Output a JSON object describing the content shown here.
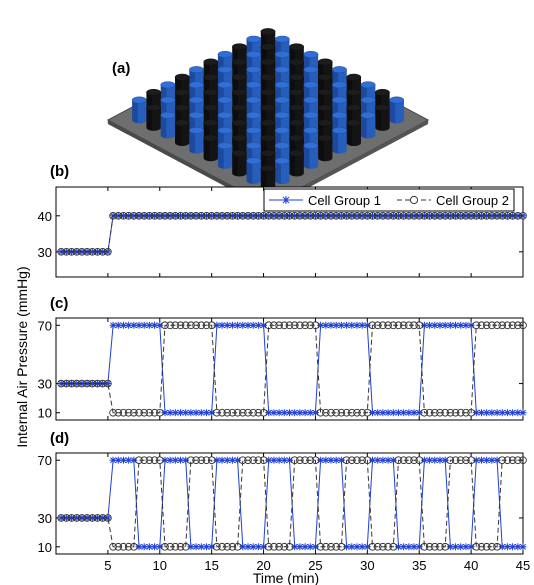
{
  "figure": {
    "panel_labels": [
      "(a)",
      "(b)",
      "(c)",
      "(d)"
    ],
    "ylabel": "Internal Air Pressure (mmHg)",
    "xlabel": "Time (min)"
  },
  "mat": {
    "rows": 10,
    "cols": 10,
    "colors": {
      "blue": "#2f6fd6",
      "black": "#1c1c1c",
      "base": "#6e6e6e"
    }
  },
  "colors": {
    "group1": "#1f3fd6",
    "group2": "#333333"
  },
  "chart_data": [
    {
      "panel": "(b)",
      "type": "line",
      "xlim": [
        0,
        45
      ],
      "ylim": [
        23,
        48
      ],
      "yticks": [
        30,
        40
      ],
      "xticks": [],
      "legend": {
        "placement": "top-right",
        "entries": [
          "Cell Group 1",
          "Cell Group 2"
        ]
      },
      "series": [
        {
          "name": "Cell Group 1",
          "marker": "star",
          "segments": [
            {
              "from": 0.5,
              "to": 5,
              "value": 30
            },
            {
              "from": 5.5,
              "to": 45,
              "value": 40
            }
          ]
        },
        {
          "name": "Cell Group 2",
          "marker": "circle",
          "segments": [
            {
              "from": 0.5,
              "to": 5,
              "value": 30
            },
            {
              "from": 5.5,
              "to": 45,
              "value": 40
            }
          ]
        }
      ]
    },
    {
      "panel": "(c)",
      "type": "line",
      "xlim": [
        0,
        45
      ],
      "ylim": [
        5,
        75
      ],
      "yticks": [
        10,
        30,
        70
      ],
      "xticks": [],
      "series": [
        {
          "name": "Cell Group 1",
          "marker": "star",
          "segments": [
            {
              "from": 0.5,
              "to": 5,
              "value": 30
            },
            {
              "from": 5.5,
              "to": 10,
              "value": 70
            },
            {
              "from": 10.5,
              "to": 15,
              "value": 10
            },
            {
              "from": 15.5,
              "to": 20,
              "value": 70
            },
            {
              "from": 20.5,
              "to": 25,
              "value": 10
            },
            {
              "from": 25.5,
              "to": 30,
              "value": 70
            },
            {
              "from": 30.5,
              "to": 35,
              "value": 10
            },
            {
              "from": 35.5,
              "to": 40,
              "value": 70
            },
            {
              "from": 40.5,
              "to": 45,
              "value": 10
            }
          ]
        },
        {
          "name": "Cell Group 2",
          "marker": "circle",
          "segments": [
            {
              "from": 0.5,
              "to": 5,
              "value": 30
            },
            {
              "from": 5.5,
              "to": 10,
              "value": 10
            },
            {
              "from": 10.5,
              "to": 15,
              "value": 70
            },
            {
              "from": 15.5,
              "to": 20,
              "value": 10
            },
            {
              "from": 20.5,
              "to": 25,
              "value": 70
            },
            {
              "from": 25.5,
              "to": 30,
              "value": 10
            },
            {
              "from": 30.5,
              "to": 35,
              "value": 70
            },
            {
              "from": 35.5,
              "to": 40,
              "value": 10
            },
            {
              "from": 40.5,
              "to": 45,
              "value": 70
            }
          ]
        }
      ]
    },
    {
      "panel": "(d)",
      "type": "line",
      "xlim": [
        0,
        45
      ],
      "ylim": [
        5,
        75
      ],
      "yticks": [
        10,
        30,
        70
      ],
      "xticks": [
        5,
        10,
        15,
        20,
        25,
        30,
        35,
        40,
        45
      ],
      "series": [
        {
          "name": "Cell Group 1",
          "marker": "star",
          "segments": [
            {
              "from": 0.5,
              "to": 5,
              "value": 30
            },
            {
              "from": 5.5,
              "to": 7.5,
              "value": 70
            },
            {
              "from": 8,
              "to": 10,
              "value": 10
            },
            {
              "from": 10.5,
              "to": 12.5,
              "value": 70
            },
            {
              "from": 13,
              "to": 15,
              "value": 10
            },
            {
              "from": 15.5,
              "to": 17.5,
              "value": 70
            },
            {
              "from": 18,
              "to": 20,
              "value": 10
            },
            {
              "from": 20.5,
              "to": 22.5,
              "value": 70
            },
            {
              "from": 23,
              "to": 25,
              "value": 10
            },
            {
              "from": 25.5,
              "to": 27.5,
              "value": 70
            },
            {
              "from": 28,
              "to": 30,
              "value": 10
            },
            {
              "from": 30.5,
              "to": 32.5,
              "value": 70
            },
            {
              "from": 33,
              "to": 35,
              "value": 10
            },
            {
              "from": 35.5,
              "to": 37.5,
              "value": 70
            },
            {
              "from": 38,
              "to": 40,
              "value": 10
            },
            {
              "from": 40.5,
              "to": 42.5,
              "value": 70
            },
            {
              "from": 43,
              "to": 45,
              "value": 10
            }
          ]
        },
        {
          "name": "Cell Group 2",
          "marker": "circle",
          "segments": [
            {
              "from": 0.5,
              "to": 5,
              "value": 30
            },
            {
              "from": 5.5,
              "to": 7.5,
              "value": 10
            },
            {
              "from": 8,
              "to": 10,
              "value": 70
            },
            {
              "from": 10.5,
              "to": 12.5,
              "value": 10
            },
            {
              "from": 13,
              "to": 15,
              "value": 70
            },
            {
              "from": 15.5,
              "to": 17.5,
              "value": 10
            },
            {
              "from": 18,
              "to": 20,
              "value": 70
            },
            {
              "from": 20.5,
              "to": 22.5,
              "value": 10
            },
            {
              "from": 23,
              "to": 25,
              "value": 70
            },
            {
              "from": 25.5,
              "to": 27.5,
              "value": 10
            },
            {
              "from": 28,
              "to": 30,
              "value": 70
            },
            {
              "from": 30.5,
              "to": 32.5,
              "value": 10
            },
            {
              "from": 33,
              "to": 35,
              "value": 70
            },
            {
              "from": 35.5,
              "to": 37.5,
              "value": 10
            },
            {
              "from": 38,
              "to": 40,
              "value": 70
            },
            {
              "from": 40.5,
              "to": 42.5,
              "value": 10
            },
            {
              "from": 43,
              "to": 45,
              "value": 70
            }
          ]
        }
      ]
    }
  ]
}
